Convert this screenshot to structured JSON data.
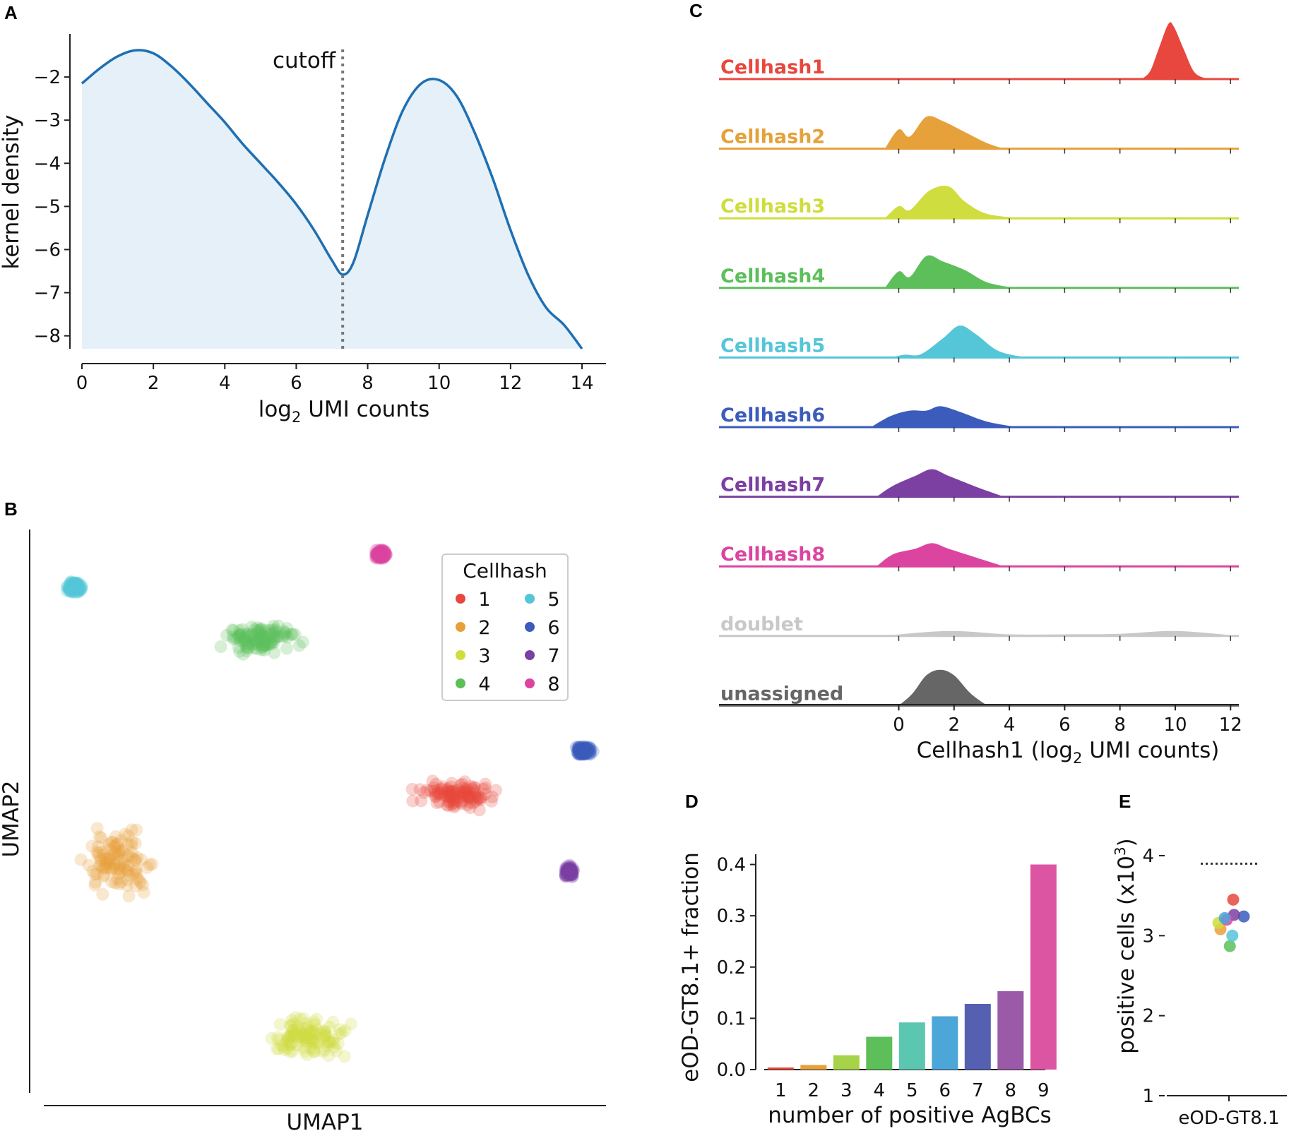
{
  "chart_data": [
    {
      "panel": "A",
      "type": "area",
      "title": "",
      "xlabel": "log2 UMI counts",
      "xlabel_main": "log",
      "xlabel_sub": "2",
      "xlabel_rest": " UMI counts",
      "ylabel": "kernel density",
      "xlim": [
        0,
        14
      ],
      "ylim": [
        -8.3,
        -1.0
      ],
      "xticks": [
        0,
        2,
        4,
        6,
        8,
        10,
        12,
        14
      ],
      "yticks": [
        -2,
        -3,
        -4,
        -5,
        -6,
        -7,
        -8
      ],
      "annotation": "cutoff",
      "cutoff_x": 7.3,
      "x": [
        0,
        0.5,
        1,
        1.5,
        2,
        2.5,
        3,
        3.5,
        4,
        4.5,
        5,
        5.5,
        6,
        6.5,
        7,
        7.3,
        7.6,
        8,
        8.5,
        9,
        9.5,
        10,
        10.5,
        11,
        11.5,
        12,
        12.5,
        13,
        13.5,
        14
      ],
      "values": [
        -2.15,
        -1.8,
        -1.52,
        -1.38,
        -1.45,
        -1.75,
        -2.15,
        -2.6,
        -3.05,
        -3.55,
        -4.0,
        -4.45,
        -4.95,
        -5.55,
        -6.25,
        -6.58,
        -6.3,
        -5.2,
        -3.85,
        -2.75,
        -2.15,
        -2.07,
        -2.45,
        -3.3,
        -4.35,
        -5.55,
        -6.6,
        -7.35,
        -7.75,
        -8.3
      ]
    },
    {
      "panel": "B",
      "type": "scatter",
      "xlabel": "UMAP1",
      "ylabel": "UMAP2",
      "legend_title": "Cellhash",
      "series": [
        {
          "name": "1",
          "color": "#e8473d",
          "center": [
            7.35,
            5.45
          ],
          "spread": [
            0.55,
            0.2
          ]
        },
        {
          "name": "2",
          "color": "#e6a13a",
          "center": [
            1.35,
            4.2
          ],
          "spread": [
            0.5,
            0.45
          ]
        },
        {
          "name": "3",
          "color": "#cfdd3e",
          "center": [
            4.65,
            1.0
          ],
          "spread": [
            0.6,
            0.3
          ]
        },
        {
          "name": "4",
          "color": "#5cbf5a",
          "center": [
            3.85,
            8.3
          ],
          "spread": [
            0.55,
            0.22
          ]
        },
        {
          "name": "5",
          "color": "#55c6d8",
          "center": [
            0.55,
            9.25
          ],
          "spread": [
            0.1,
            0.1
          ]
        },
        {
          "name": "6",
          "color": "#3b5cbc",
          "center": [
            9.6,
            6.25
          ],
          "spread": [
            0.12,
            0.08
          ]
        },
        {
          "name": "7",
          "color": "#7c3fa2",
          "center": [
            9.35,
            4.05
          ],
          "spread": [
            0.07,
            0.07
          ]
        },
        {
          "name": "8",
          "color": "#db45a0",
          "center": [
            6.0,
            9.85
          ],
          "spread": [
            0.08,
            0.07
          ]
        }
      ]
    },
    {
      "panel": "C",
      "type": "area",
      "xlabel": "Cellhash1 (log2 UMI counts)",
      "xlabel_main": "Cellhash1 (log",
      "xlabel_sub": "2",
      "xlabel_rest": " UMI counts)",
      "xlim": [
        -6.5,
        12.3
      ],
      "xticks": [
        0,
        2,
        4,
        6,
        8,
        10,
        12
      ],
      "series": [
        {
          "name": "Cellhash1",
          "color": "#e8473d",
          "fill": "#e8473d",
          "points": [
            [
              8.8,
              0
            ],
            [
              9.1,
              0.15
            ],
            [
              9.4,
              0.55
            ],
            [
              9.75,
              1.0
            ],
            [
              9.95,
              0.95
            ],
            [
              10.3,
              0.55
            ],
            [
              10.7,
              0.12
            ],
            [
              11.2,
              0
            ]
          ]
        },
        {
          "name": "Cellhash2",
          "color": "#e6a13a",
          "fill": "#e6a13a",
          "points": [
            [
              -0.5,
              0
            ],
            [
              0,
              0.35
            ],
            [
              0.4,
              0.22
            ],
            [
              1.0,
              0.58
            ],
            [
              1.6,
              0.5
            ],
            [
              2.4,
              0.3
            ],
            [
              3.2,
              0.1
            ],
            [
              3.8,
              0
            ]
          ]
        },
        {
          "name": "Cellhash3",
          "color": "#cfdd3e",
          "fill": "#cfdd3e",
          "points": [
            [
              -0.5,
              0
            ],
            [
              0,
              0.22
            ],
            [
              0.4,
              0.15
            ],
            [
              1.1,
              0.5
            ],
            [
              1.8,
              0.58
            ],
            [
              2.4,
              0.3
            ],
            [
              3.2,
              0.08
            ],
            [
              4.5,
              0
            ]
          ]
        },
        {
          "name": "Cellhash4",
          "color": "#5cbf5a",
          "fill": "#5cbf5a",
          "points": [
            [
              -0.5,
              0
            ],
            [
              0,
              0.3
            ],
            [
              0.4,
              0.2
            ],
            [
              1.0,
              0.58
            ],
            [
              1.6,
              0.48
            ],
            [
              2.4,
              0.32
            ],
            [
              3.2,
              0.1
            ],
            [
              4.2,
              0
            ]
          ]
        },
        {
          "name": "Cellhash5",
          "color": "#55c6d8",
          "fill": "#55c6d8",
          "points": [
            [
              -0.3,
              0
            ],
            [
              0.2,
              0.05
            ],
            [
              0.8,
              0.06
            ],
            [
              1.6,
              0.35
            ],
            [
              2.2,
              0.58
            ],
            [
              2.8,
              0.42
            ],
            [
              3.6,
              0.12
            ],
            [
              4.6,
              0
            ]
          ]
        },
        {
          "name": "Cellhash6",
          "color": "#3b5cbc",
          "fill": "#3b5cbc",
          "points": [
            [
              -1.0,
              0
            ],
            [
              -0.3,
              0.2
            ],
            [
              0.4,
              0.3
            ],
            [
              1.0,
              0.3
            ],
            [
              1.5,
              0.38
            ],
            [
              2.2,
              0.28
            ],
            [
              3.2,
              0.1
            ],
            [
              4.3,
              0
            ]
          ]
        },
        {
          "name": "Cellhash7",
          "color": "#7c3fa2",
          "fill": "#7c3fa2",
          "points": [
            [
              -0.8,
              0
            ],
            [
              -0.2,
              0.2
            ],
            [
              0.6,
              0.38
            ],
            [
              1.2,
              0.5
            ],
            [
              1.8,
              0.38
            ],
            [
              2.8,
              0.18
            ],
            [
              3.8,
              0
            ]
          ]
        },
        {
          "name": "Cellhash8",
          "color": "#db45a0",
          "fill": "#db45a0",
          "points": [
            [
              -0.8,
              0
            ],
            [
              -0.2,
              0.22
            ],
            [
              0.6,
              0.32
            ],
            [
              1.2,
              0.42
            ],
            [
              1.8,
              0.32
            ],
            [
              2.8,
              0.16
            ],
            [
              3.8,
              0
            ]
          ]
        },
        {
          "name": "doublet",
          "color": "#c8c8c8",
          "fill": "#c8c8c8",
          "points": [
            [
              -0.5,
              0
            ],
            [
              0.5,
              0.05
            ],
            [
              2.0,
              0.09
            ],
            [
              4.0,
              0.03
            ],
            [
              6.0,
              0.03
            ],
            [
              8.0,
              0.04
            ],
            [
              10.0,
              0.09
            ],
            [
              12.3,
              0
            ]
          ]
        },
        {
          "name": "unassigned",
          "color": "#666666",
          "fill": "#666666",
          "points": [
            [
              0.0,
              0
            ],
            [
              0.5,
              0.22
            ],
            [
              1.0,
              0.55
            ],
            [
              1.5,
              0.65
            ],
            [
              2.0,
              0.55
            ],
            [
              2.6,
              0.22
            ],
            [
              3.2,
              0
            ]
          ]
        }
      ]
    },
    {
      "panel": "D",
      "type": "bar",
      "xlabel": "number of positive AgBCs",
      "ylabel": "eOD-GT8.1+ fraction",
      "ylim": [
        0,
        0.42
      ],
      "yticks": [
        "0.0",
        "0.1",
        "0.2",
        "0.3",
        "0.4"
      ],
      "categories": [
        "1",
        "2",
        "3",
        "4",
        "5",
        "6",
        "7",
        "8",
        "9"
      ],
      "values": [
        0.004,
        0.009,
        0.028,
        0.064,
        0.092,
        0.104,
        0.128,
        0.153,
        0.4
      ],
      "colors": [
        "#e8473d",
        "#e6a13a",
        "#a6d34a",
        "#5cbf5a",
        "#5cc7b0",
        "#4ca6d8",
        "#5660b0",
        "#9a5aa8",
        "#db55a3"
      ]
    },
    {
      "panel": "E",
      "type": "scatter",
      "xlabel": "eOD-GT8.1",
      "ylabel": "positive cells (x10",
      "ylabel_sup": "3",
      "ylabel_close": ")",
      "ylim": [
        1,
        4.3
      ],
      "yticks": [
        "1",
        "2",
        "3",
        "4"
      ],
      "reference_line": 3.9,
      "points": [
        {
          "x": 0.1,
          "y": 3.45,
          "color": "#e8473d"
        },
        {
          "x": -0.2,
          "y": 3.08,
          "color": "#e6a13a"
        },
        {
          "x": -0.25,
          "y": 3.16,
          "color": "#cfdd3e"
        },
        {
          "x": 0.02,
          "y": 2.87,
          "color": "#5cbf5a"
        },
        {
          "x": 0.08,
          "y": 3.0,
          "color": "#55c6d8"
        },
        {
          "x": 0.35,
          "y": 3.24,
          "color": "#3b5cbc"
        },
        {
          "x": 0.12,
          "y": 3.26,
          "color": "#7c3fa2"
        },
        {
          "x": -0.05,
          "y": 3.2,
          "color": "#db45a0"
        },
        {
          "x": -0.1,
          "y": 3.22,
          "color": "#4ca6d8"
        }
      ]
    }
  ]
}
